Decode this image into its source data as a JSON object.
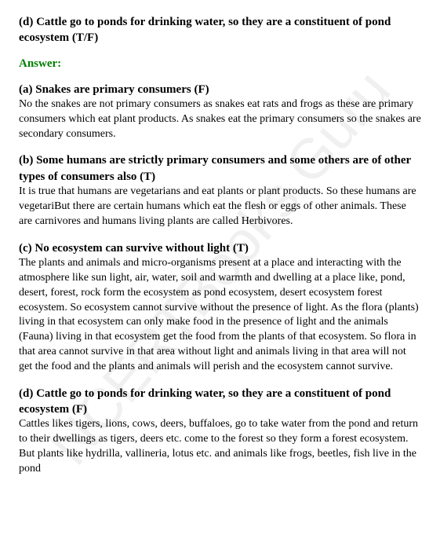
{
  "watermark": "NCERTBooks.Guru",
  "question_d": "(d) Cattle go to ponds for drinking water, so they are a constituent of pond ecosystem (T/F)",
  "answer_label": "Answer:",
  "sections": {
    "a": {
      "heading": "(a) Snakes are primary consumers (F)",
      "body": "No the snakes are not primary consumers as snakes eat rats and frogs as these are primary consumers which eat plant products. As snakes eat the primary consumers so the snakes are secondary consumers."
    },
    "b": {
      "heading": "(b) Some humans are strictly primary consumers and some others are of other types of consumers also (T)",
      "body": "It is true that humans are vegetarians and eat plants or plant products. So these humans are vegetariBut there are certain humans which eat the flesh or eggs of other animals. These are carnivores and humans living plants are called Herbivores."
    },
    "c": {
      "heading": "(c) No ecosystem can survive without light (T)",
      "body": "The plants and animals and micro-organisms present at a place and interacting with the atmosphere like sun light, air, water, soil and warmth and dwelling at a place like, pond, desert, forest, rock form the ecosystem as pond ecosystem, desert ecosystem forest ecosystem. So ecosystem cannot survive without the presence of light. As the flora (plants) living in that ecosystem can only make food in the presence of light and the animals (Fauna) living in that ecosystem get the food from the plants of that ecosystem. So flora in that area cannot survive in that area without light and animals living in that area will not get the food and the plants and animals will perish and the ecosystem cannot survive."
    },
    "d": {
      "heading": "(d) Cattle go to ponds for drinking water, so they are a constituent of pond ecosystem (F)",
      "body": "Cattles likes tigers, lions, cows, deers, buffaloes, go to take water from the pond and return to their dwellings as tigers, deers etc. come to the forest so they form a forest ecosystem. But plants like hydrilla, vallineria, lotus etc. and animals like frogs, beetles, fish live in the pond"
    }
  }
}
